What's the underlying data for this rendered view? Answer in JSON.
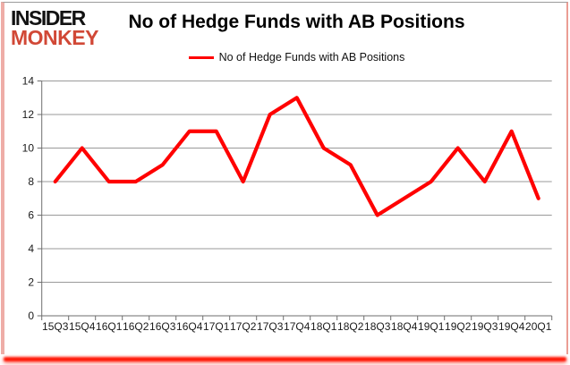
{
  "logo": {
    "line1": "INSIDER",
    "line2": "MONKEY",
    "line2_color": "#d14836"
  },
  "header": {
    "title": "No of Hedge Funds with AB Positions"
  },
  "legend": {
    "label": "No of Hedge Funds with AB Positions",
    "line_color": "#ff0000"
  },
  "chart_data": {
    "type": "line",
    "title": "No of Hedge Funds with AB Positions",
    "categories": [
      "15Q3",
      "15Q4",
      "16Q1",
      "16Q2",
      "16Q3",
      "16Q4",
      "17Q1",
      "17Q2",
      "17Q3",
      "17Q4",
      "18Q1",
      "18Q2",
      "18Q3",
      "18Q4",
      "19Q1",
      "19Q2",
      "19Q3",
      "19Q4",
      "20Q1"
    ],
    "series": [
      {
        "name": "No of Hedge Funds with AB Positions",
        "values": [
          8,
          10,
          8,
          8,
          9,
          11,
          11,
          8,
          12,
          13,
          10,
          9,
          6,
          7,
          8,
          10,
          8,
          11,
          7
        ],
        "color": "#ff0000"
      }
    ],
    "xlabel": "",
    "ylabel": "",
    "ylim": [
      0,
      14
    ],
    "yticks": [
      0,
      2,
      4,
      6,
      8,
      10,
      12,
      14
    ],
    "grid": true,
    "legend_position": "top-center",
    "gridline_color": "#9a9a9a",
    "axis_color": "#6e6e6e",
    "tick_label_color": "#1a1a1a"
  },
  "frame_colors": {
    "left_strip": "#eeada7",
    "right_strip": "#eb9d94",
    "top_line": "#9b9b9b",
    "bottom_bar": "#ff1200"
  }
}
